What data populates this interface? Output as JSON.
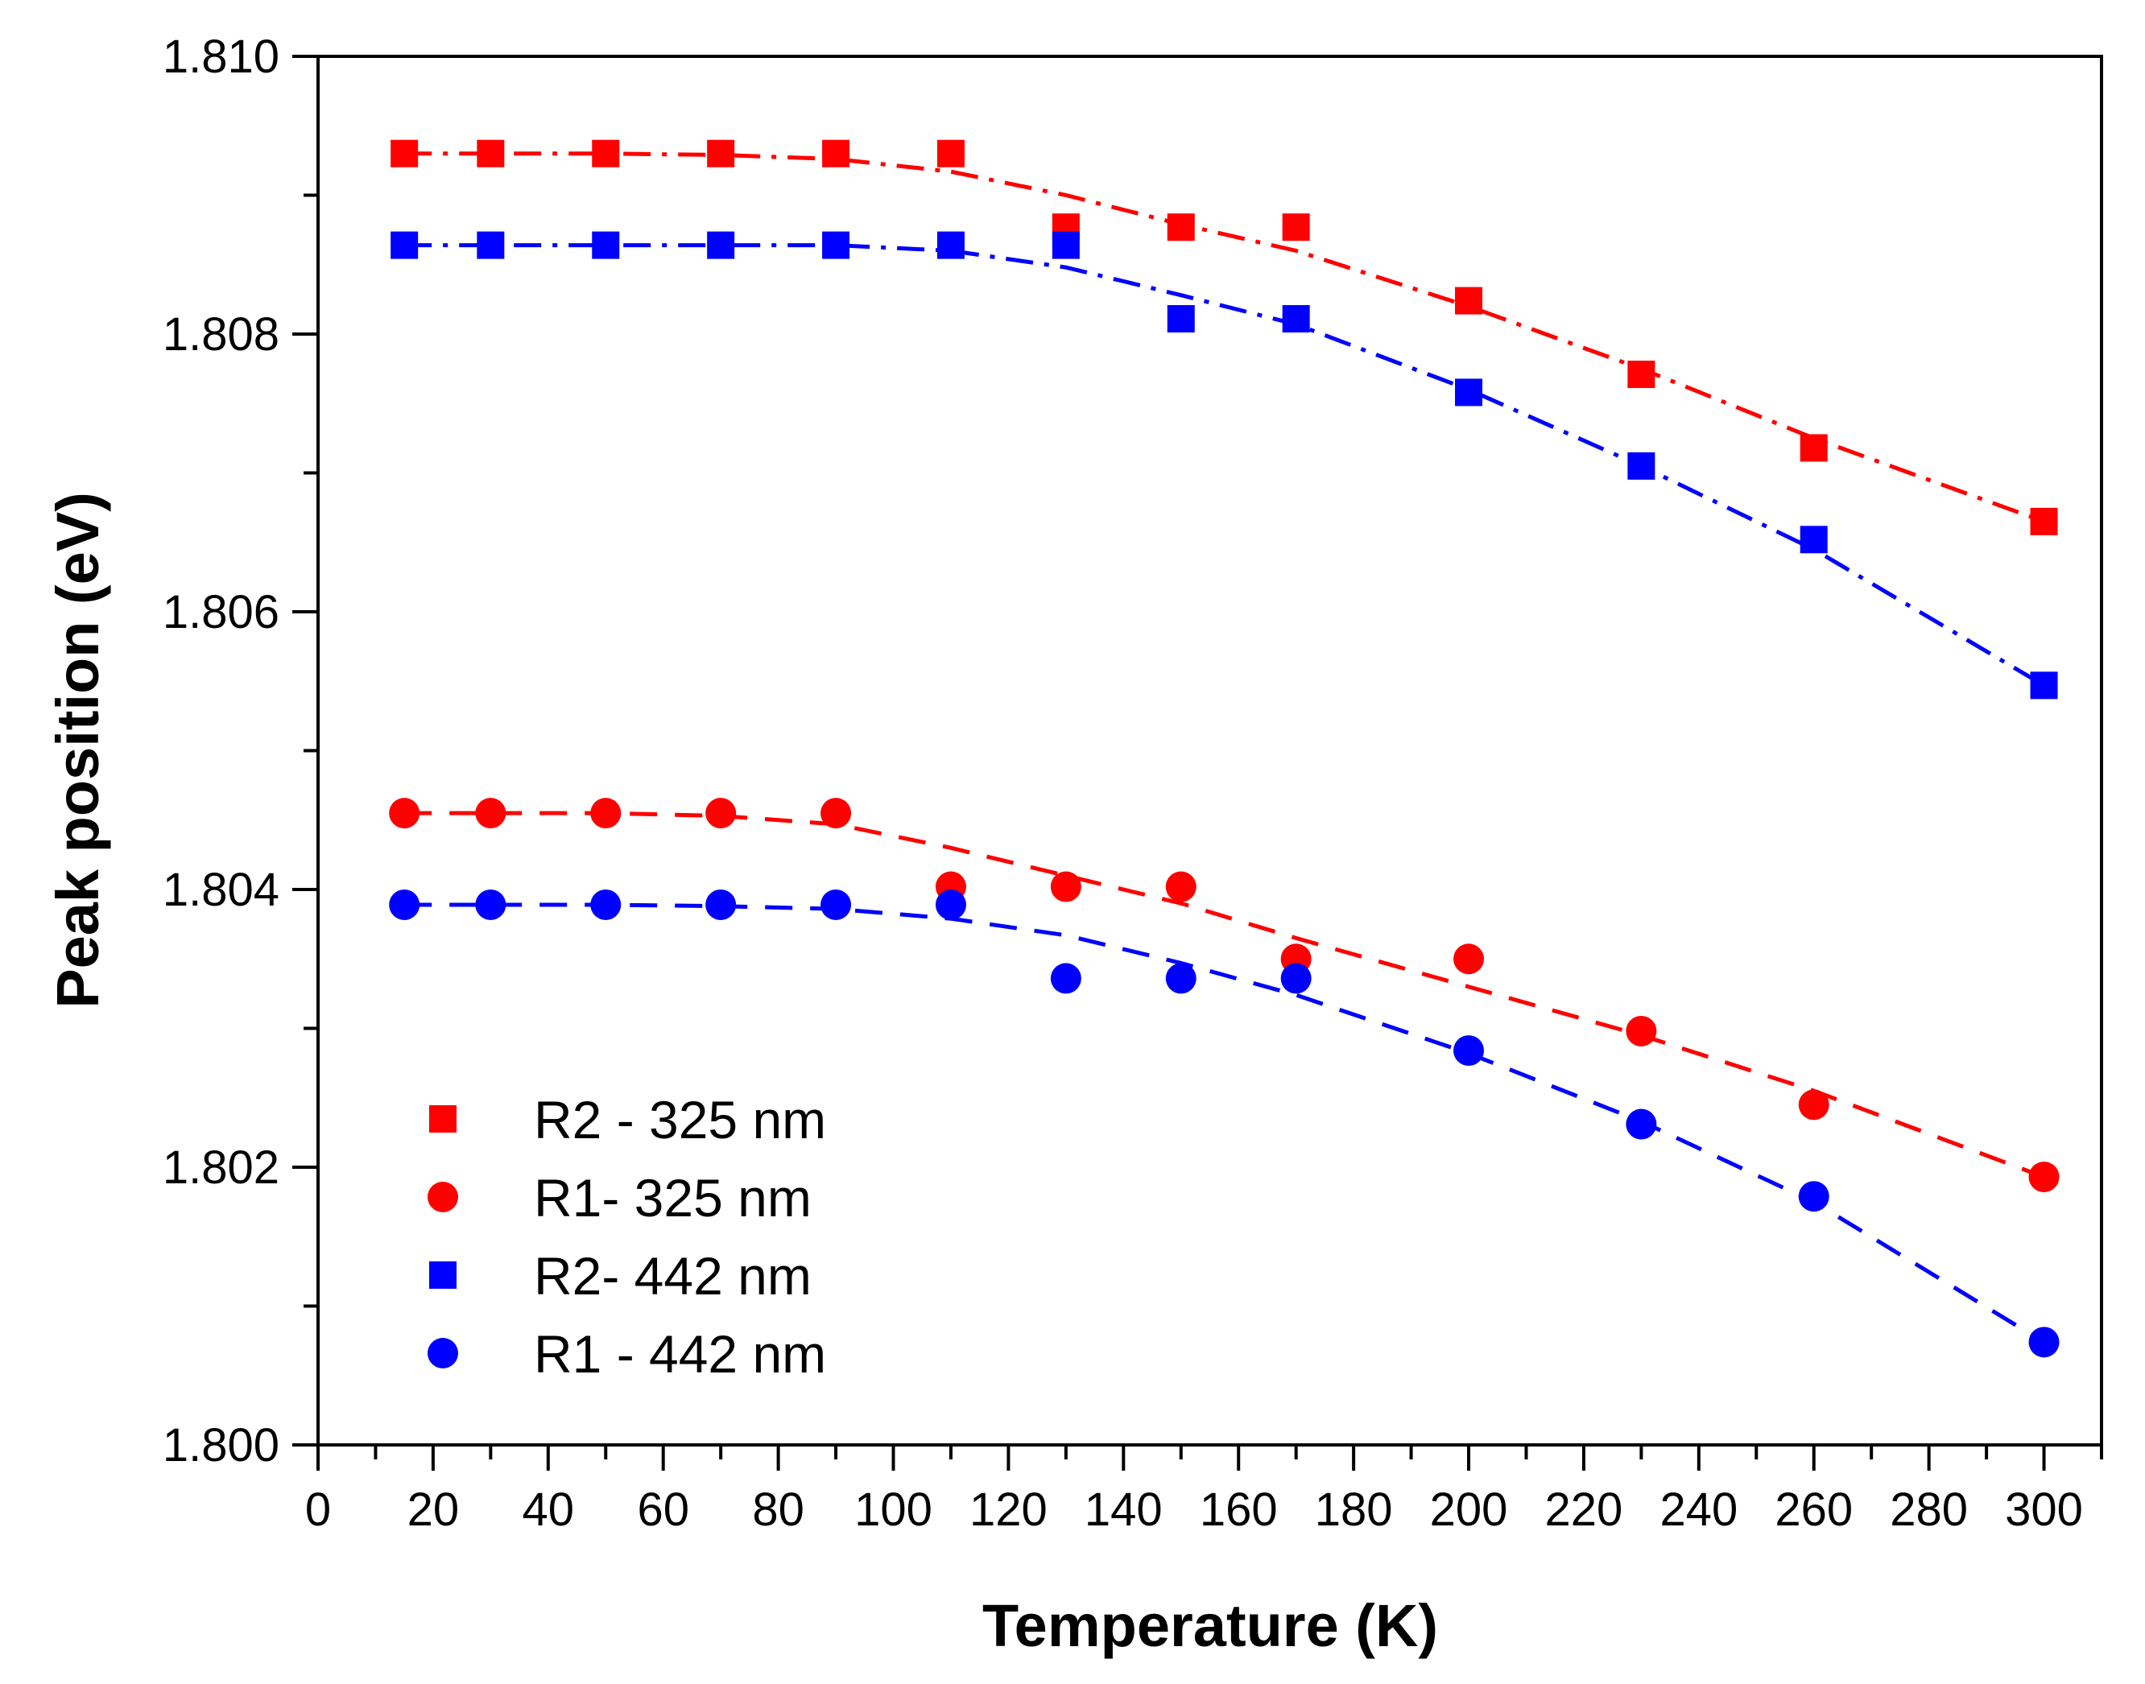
{
  "chart_data": {
    "type": "scatter",
    "title": "",
    "xlabel": "Temperature (K)",
    "ylabel": "Peak position (eV)",
    "xlim": [
      0,
      310
    ],
    "ylim": [
      1.8,
      1.81
    ],
    "xticks": [
      0,
      20,
      40,
      60,
      80,
      100,
      120,
      140,
      160,
      180,
      200,
      220,
      240,
      260,
      280,
      300
    ],
    "xtick_labels": [
      "0",
      "20",
      "40",
      "60",
      "80",
      "100",
      "120",
      "140",
      "160",
      "180",
      "200",
      "220",
      "240",
      "260",
      "280",
      "300"
    ],
    "yticks": [
      1.8,
      1.802,
      1.804,
      1.806,
      1.808,
      1.81
    ],
    "ytick_labels": [
      "1.800",
      "1.802",
      "1.804",
      "1.806",
      "1.808",
      "1.810"
    ],
    "grid": false,
    "legend_position": "bottom-left",
    "series": [
      {
        "name": "R2 - 325 nm",
        "marker": "square",
        "color": "#ff0000",
        "line_style": "dash-dot",
        "x": [
          15,
          30,
          50,
          70,
          90,
          110,
          130,
          150,
          170,
          200,
          230,
          260,
          300
        ],
        "y": [
          1.8093,
          1.8093,
          1.8093,
          1.8093,
          1.8093,
          1.8093,
          1.80877,
          1.80877,
          1.80877,
          1.80824,
          1.80771,
          1.80718,
          1.80665
        ],
        "fit_x": [
          15,
          30,
          50,
          70,
          90,
          110,
          130,
          150,
          170,
          200,
          230,
          260,
          300
        ],
        "fit_y": [
          1.8093,
          1.8093,
          1.8093,
          1.80929,
          1.80926,
          1.80917,
          1.809,
          1.80879,
          1.8086,
          1.8082,
          1.80775,
          1.80725,
          1.80665
        ]
      },
      {
        "name": "R1- 325 nm",
        "marker": "circle",
        "color": "#ff0000",
        "line_style": "dash",
        "x": [
          15,
          30,
          50,
          70,
          90,
          110,
          130,
          150,
          170,
          200,
          230,
          260,
          300
        ],
        "y": [
          1.80455,
          1.80455,
          1.80455,
          1.80455,
          1.80455,
          1.80402,
          1.80402,
          1.80402,
          1.8035,
          1.8035,
          1.80298,
          1.80245,
          1.80193
        ],
        "fit_x": [
          15,
          30,
          50,
          70,
          90,
          110,
          130,
          150,
          170,
          200,
          230,
          260,
          300
        ],
        "fit_y": [
          1.80455,
          1.80455,
          1.80455,
          1.80453,
          1.80447,
          1.8043,
          1.8041,
          1.8039,
          1.80365,
          1.8033,
          1.80295,
          1.80255,
          1.80193
        ]
      },
      {
        "name": "R2- 442 nm",
        "marker": "square",
        "color": "#0000ff",
        "line_style": "dash-dot",
        "x": [
          15,
          30,
          50,
          70,
          90,
          110,
          130,
          150,
          170,
          200,
          230,
          260,
          300
        ],
        "y": [
          1.80864,
          1.80864,
          1.80864,
          1.80864,
          1.80864,
          1.80864,
          1.80864,
          1.80811,
          1.80811,
          1.80758,
          1.80705,
          1.80652,
          1.80547
        ],
        "fit_x": [
          15,
          30,
          50,
          70,
          90,
          110,
          130,
          150,
          170,
          200,
          230,
          260,
          300
        ],
        "fit_y": [
          1.80864,
          1.80864,
          1.80864,
          1.80864,
          1.80864,
          1.8086,
          1.80848,
          1.80828,
          1.80807,
          1.8076,
          1.80705,
          1.80645,
          1.80547
        ]
      },
      {
        "name": "R1 - 442 nm",
        "marker": "circle",
        "color": "#0000ff",
        "line_style": "dash",
        "x": [
          15,
          30,
          50,
          70,
          90,
          110,
          130,
          150,
          170,
          200,
          230,
          260,
          300
        ],
        "y": [
          1.80389,
          1.80389,
          1.80389,
          1.80389,
          1.80389,
          1.80389,
          1.80336,
          1.80336,
          1.80336,
          1.80284,
          1.80231,
          1.80179,
          1.80074
        ],
        "fit_x": [
          15,
          30,
          50,
          70,
          90,
          110,
          130,
          150,
          170,
          200,
          230,
          260,
          300
        ],
        "fit_y": [
          1.80389,
          1.80389,
          1.80389,
          1.80388,
          1.80386,
          1.80379,
          1.80367,
          1.80347,
          1.80324,
          1.80282,
          1.80233,
          1.80175,
          1.80074
        ]
      }
    ]
  }
}
